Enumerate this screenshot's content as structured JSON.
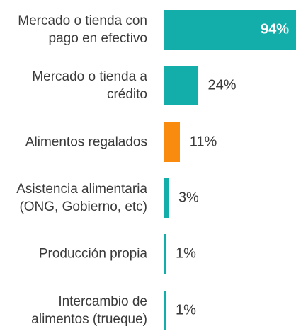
{
  "chart_data": {
    "type": "bar",
    "orientation": "horizontal",
    "categories": [
      "Mercado o tienda con pago en efectivo",
      "Mercado o tienda a crédito",
      "Alimentos regalados",
      "Asistencia alimentaria (ONG, Gobierno, etc)",
      "Producción propia",
      "Intercambio de alimentos (trueque)"
    ],
    "values": [
      94,
      24,
      11,
      3,
      1,
      1
    ],
    "value_labels": [
      "94%",
      "24%",
      "11%",
      "3%",
      "1%",
      "1%"
    ],
    "colors": [
      "#13aeaa",
      "#13aeaa",
      "#f98b0f",
      "#13aeaa",
      "#13aeaa",
      "#13aeaa"
    ]
  }
}
